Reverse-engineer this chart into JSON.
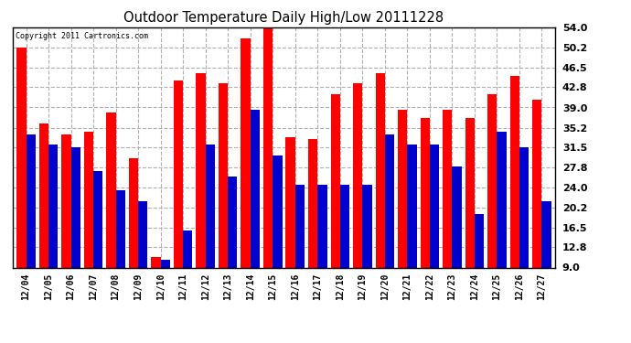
{
  "title": "Outdoor Temperature Daily High/Low 20111228",
  "copyright": "Copyright 2011 Cartronics.com",
  "dates": [
    "12/04",
    "12/05",
    "12/06",
    "12/07",
    "12/08",
    "12/09",
    "12/10",
    "12/11",
    "12/12",
    "12/13",
    "12/14",
    "12/15",
    "12/16",
    "12/17",
    "12/18",
    "12/19",
    "12/20",
    "12/21",
    "12/22",
    "12/23",
    "12/24",
    "12/25",
    "12/26",
    "12/27"
  ],
  "highs": [
    50.2,
    36.0,
    34.0,
    34.5,
    38.0,
    29.5,
    11.0,
    44.0,
    45.5,
    43.5,
    52.0,
    54.0,
    33.5,
    33.0,
    41.5,
    43.5,
    45.5,
    38.5,
    37.0,
    38.5,
    37.0,
    41.5,
    45.0,
    40.5
  ],
  "lows": [
    34.0,
    32.0,
    31.5,
    27.0,
    23.5,
    21.5,
    10.5,
    16.0,
    32.0,
    26.0,
    38.5,
    30.0,
    24.5,
    24.5,
    24.5,
    24.5,
    34.0,
    32.0,
    32.0,
    28.0,
    19.0,
    34.5,
    31.5,
    21.5
  ],
  "high_color": "#ff0000",
  "low_color": "#0000cc",
  "bg_color": "#ffffff",
  "grid_color": "#b0b0b0",
  "ymin": 9.0,
  "ymax": 54.0,
  "yticks": [
    9.0,
    12.8,
    16.5,
    20.2,
    24.0,
    27.8,
    31.5,
    35.2,
    39.0,
    42.8,
    46.5,
    50.2,
    54.0
  ]
}
